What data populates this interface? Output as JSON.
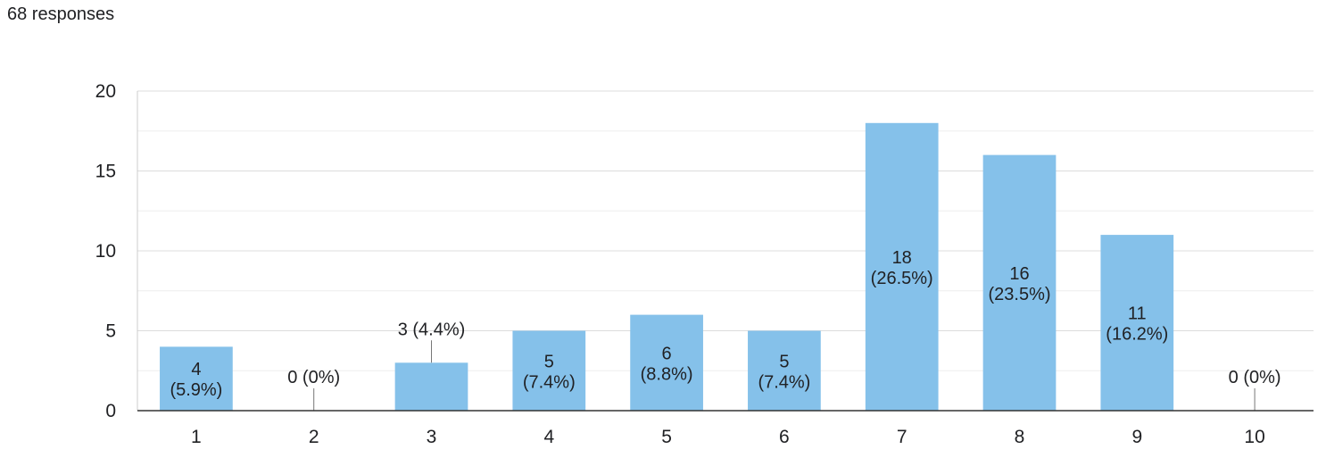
{
  "header": {
    "responses": "68 responses"
  },
  "chart_data": {
    "type": "bar",
    "categories": [
      "1",
      "2",
      "3",
      "4",
      "5",
      "6",
      "7",
      "8",
      "9",
      "10"
    ],
    "values": [
      4,
      0,
      3,
      5,
      6,
      5,
      18,
      16,
      11,
      0
    ],
    "labels": [
      "4 (5.9%)",
      "0 (0%)",
      "3 (4.4%)",
      "5 (7.4%)",
      "6 (8.8%)",
      "5 (7.4%)",
      "18 (26.5%)",
      "16 (23.5%)",
      "11 (16.2%)",
      "0 (0%)"
    ],
    "ylim": [
      0,
      20
    ],
    "yticks": [
      "0",
      "5",
      "10",
      "15",
      "20"
    ],
    "minor_grid_step": 2.5,
    "grid": true,
    "title": "",
    "xlabel": "",
    "ylabel": "",
    "colors": {
      "bar": "#85c1ea",
      "grid": "#e6e6e6",
      "axis": "#333333",
      "leader": "#777777"
    }
  }
}
